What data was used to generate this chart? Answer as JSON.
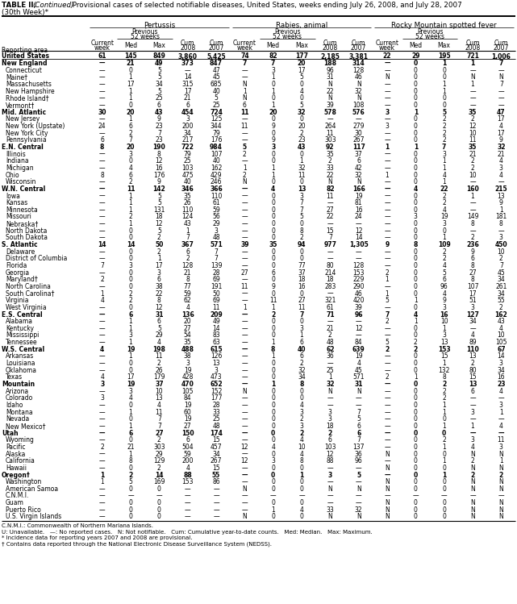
{
  "title_line1": "TABLE II. (Continued) Provisional cases of selected notifiable diseases, United States, weeks ending July 26, 2008, and July 28, 2007",
  "title_line2": "(30th Week)*",
  "col_groups": [
    "Pertussis",
    "Rabies, animal",
    "Rocky Mountain spotted fever"
  ],
  "rows": [
    [
      "United States",
      "61",
      "145",
      "849",
      "3,860",
      "5,425",
      "74",
      "82",
      "177",
      "2,185",
      "3,381",
      "22",
      "29",
      "195",
      "721",
      "1,006"
    ],
    [
      "New England",
      "—",
      "21",
      "49",
      "373",
      "847",
      "7",
      "7",
      "20",
      "188",
      "314",
      "—",
      "0",
      "1",
      "1",
      "7"
    ],
    [
      "Connecticut",
      "—",
      "0",
      "5",
      "—",
      "47",
      "—",
      "3",
      "17",
      "96",
      "128",
      "—",
      "0",
      "0",
      "—",
      "—"
    ],
    [
      "Maine†",
      "—",
      "1",
      "5",
      "14",
      "45",
      "—",
      "1",
      "5",
      "31",
      "46",
      "N",
      "0",
      "0",
      "N",
      "N"
    ],
    [
      "Massachusetts",
      "—",
      "17",
      "34",
      "315",
      "685",
      "N",
      "0",
      "0",
      "N",
      "N",
      "—",
      "0",
      "1",
      "1",
      "7"
    ],
    [
      "New Hampshire",
      "—",
      "1",
      "5",
      "17",
      "40",
      "1",
      "1",
      "4",
      "22",
      "32",
      "—",
      "0",
      "1",
      "—",
      "—"
    ],
    [
      "Rhode Island†",
      "—",
      "1",
      "25",
      "21",
      "5",
      "N",
      "0",
      "0",
      "N",
      "N",
      "—",
      "0",
      "0",
      "—",
      "—"
    ],
    [
      "Vermont†",
      "—",
      "0",
      "6",
      "6",
      "25",
      "6",
      "1",
      "5",
      "39",
      "108",
      "—",
      "0",
      "0",
      "—",
      "—"
    ],
    [
      "Mid. Atlantic",
      "30",
      "20",
      "43",
      "454",
      "724",
      "11",
      "20",
      "32",
      "578",
      "576",
      "3",
      "1",
      "5",
      "35",
      "47"
    ],
    [
      "New Jersey",
      "—",
      "1",
      "9",
      "3",
      "125",
      "—",
      "0",
      "0",
      "—",
      "—",
      "—",
      "0",
      "2",
      "2",
      "17"
    ],
    [
      "New York (Upstate)",
      "24",
      "6",
      "23",
      "200",
      "344",
      "11",
      "9",
      "20",
      "264",
      "279",
      "3",
      "0",
      "2",
      "12",
      "4"
    ],
    [
      "New York City",
      "—",
      "2",
      "7",
      "34",
      "79",
      "—",
      "0",
      "2",
      "11",
      "30",
      "—",
      "0",
      "2",
      "10",
      "17"
    ],
    [
      "Pennsylvania",
      "6",
      "7",
      "23",
      "217",
      "176",
      "—",
      "9",
      "23",
      "303",
      "267",
      "—",
      "0",
      "2",
      "11",
      "9"
    ],
    [
      "E.N. Central",
      "8",
      "20",
      "190",
      "722",
      "984",
      "5",
      "3",
      "43",
      "92",
      "117",
      "1",
      "1",
      "7",
      "35",
      "32"
    ],
    [
      "Illinois",
      "—",
      "3",
      "8",
      "79",
      "107",
      "2",
      "0",
      "0",
      "35",
      "37",
      "—",
      "0",
      "3",
      "21",
      "21"
    ],
    [
      "Indiana",
      "—",
      "0",
      "12",
      "25",
      "40",
      "—",
      "0",
      "1",
      "2",
      "6",
      "—",
      "0",
      "1",
      "2",
      "4"
    ],
    [
      "Michigan",
      "—",
      "4",
      "16",
      "103",
      "162",
      "1",
      "1",
      "32",
      "33",
      "42",
      "—",
      "0",
      "1",
      "2",
      "3"
    ],
    [
      "Ohio",
      "8",
      "6",
      "176",
      "475",
      "429",
      "2",
      "1",
      "11",
      "22",
      "32",
      "1",
      "0",
      "4",
      "10",
      "4"
    ],
    [
      "Wisconsin",
      "—",
      "2",
      "9",
      "40",
      "246",
      "N",
      "0",
      "0",
      "N",
      "N",
      "—",
      "0",
      "1",
      "—",
      "—"
    ],
    [
      "W.N. Central",
      "—",
      "11",
      "142",
      "346",
      "366",
      "—",
      "4",
      "13",
      "82",
      "166",
      "—",
      "4",
      "22",
      "160",
      "215"
    ],
    [
      "Iowa",
      "—",
      "1",
      "5",
      "35",
      "110",
      "—",
      "0",
      "3",
      "11",
      "19",
      "—",
      "0",
      "2",
      "1",
      "13"
    ],
    [
      "Kansas",
      "—",
      "1",
      "5",
      "26",
      "61",
      "—",
      "0",
      "7",
      "—",
      "81",
      "—",
      "0",
      "2",
      "—",
      "9"
    ],
    [
      "Minnesota",
      "—",
      "1",
      "131",
      "110",
      "59",
      "—",
      "0",
      "7",
      "27",
      "16",
      "—",
      "0",
      "4",
      "—",
      "1"
    ],
    [
      "Missouri",
      "—",
      "2",
      "18",
      "124",
      "56",
      "—",
      "0",
      "5",
      "22",
      "24",
      "—",
      "3",
      "19",
      "149",
      "181"
    ],
    [
      "Nebraska†",
      "—",
      "1",
      "12",
      "43",
      "29",
      "—",
      "0",
      "0",
      "—",
      "—",
      "—",
      "0",
      "3",
      "8",
      "8"
    ],
    [
      "North Dakota",
      "—",
      "0",
      "5",
      "1",
      "3",
      "—",
      "0",
      "8",
      "15",
      "12",
      "—",
      "0",
      "0",
      "—",
      "—"
    ],
    [
      "South Dakota",
      "—",
      "0",
      "2",
      "7",
      "48",
      "—",
      "0",
      "2",
      "7",
      "14",
      "—",
      "0",
      "1",
      "2",
      "3"
    ],
    [
      "S. Atlantic",
      "14",
      "14",
      "50",
      "367",
      "571",
      "39",
      "35",
      "94",
      "977",
      "1,305",
      "9",
      "8",
      "109",
      "236",
      "450"
    ],
    [
      "Delaware",
      "—",
      "0",
      "2",
      "6",
      "7",
      "—",
      "0",
      "0",
      "—",
      "—",
      "—",
      "0",
      "2",
      "9",
      "10"
    ],
    [
      "District of Columbia",
      "—",
      "0",
      "1",
      "2",
      "7",
      "—",
      "0",
      "0",
      "—",
      "—",
      "—",
      "0",
      "2",
      "6",
      "2"
    ],
    [
      "Florida",
      "7",
      "3",
      "17",
      "128",
      "139",
      "—",
      "0",
      "77",
      "80",
      "128",
      "—",
      "0",
      "4",
      "8",
      "7"
    ],
    [
      "Georgia",
      "—",
      "0",
      "3",
      "21",
      "28",
      "27",
      "6",
      "37",
      "214",
      "153",
      "2",
      "0",
      "5",
      "27",
      "45"
    ],
    [
      "Maryland†",
      "2",
      "0",
      "6",
      "8",
      "69",
      "—",
      "0",
      "18",
      "18",
      "229",
      "1",
      "0",
      "6",
      "8",
      "34"
    ],
    [
      "North Carolina",
      "—",
      "0",
      "38",
      "77",
      "191",
      "11",
      "9",
      "16",
      "283",
      "290",
      "—",
      "0",
      "96",
      "107",
      "261"
    ],
    [
      "South Carolina†",
      "1",
      "2",
      "22",
      "59",
      "50",
      "—",
      "0",
      "0",
      "—",
      "46",
      "1",
      "0",
      "4",
      "17",
      "34"
    ],
    [
      "Virginia",
      "4",
      "2",
      "8",
      "62",
      "69",
      "—",
      "11",
      "27",
      "321",
      "420",
      "5",
      "1",
      "9",
      "51",
      "55"
    ],
    [
      "West Virginia",
      "—",
      "0",
      "12",
      "4",
      "11",
      "1",
      "1",
      "11",
      "61",
      "39",
      "—",
      "0",
      "3",
      "3",
      "2"
    ],
    [
      "E.S. Central",
      "—",
      "6",
      "31",
      "136",
      "209",
      "—",
      "2",
      "7",
      "71",
      "96",
      "7",
      "4",
      "16",
      "127",
      "162"
    ],
    [
      "Alabama",
      "—",
      "1",
      "6",
      "20",
      "49",
      "—",
      "0",
      "0",
      "—",
      "—",
      "2",
      "1",
      "10",
      "34",
      "43"
    ],
    [
      "Kentucky",
      "—",
      "1",
      "5",
      "27",
      "14",
      "—",
      "0",
      "3",
      "21",
      "12",
      "—",
      "0",
      "1",
      "—",
      "4"
    ],
    [
      "Mississippi",
      "—",
      "3",
      "29",
      "54",
      "83",
      "—",
      "0",
      "1",
      "2",
      "—",
      "—",
      "0",
      "3",
      "4",
      "10"
    ],
    [
      "Tennessee",
      "—",
      "1",
      "4",
      "35",
      "63",
      "—",
      "1",
      "6",
      "48",
      "84",
      "5",
      "2",
      "13",
      "89",
      "105"
    ],
    [
      "W.S. Central",
      "4",
      "19",
      "198",
      "488",
      "615",
      "—",
      "8",
      "40",
      "62",
      "639",
      "2",
      "2",
      "153",
      "110",
      "67"
    ],
    [
      "Arkansas",
      "—",
      "1",
      "11",
      "38",
      "126",
      "—",
      "1",
      "6",
      "36",
      "19",
      "—",
      "0",
      "15",
      "13",
      "14"
    ],
    [
      "Louisiana",
      "—",
      "0",
      "2",
      "3",
      "13",
      "—",
      "0",
      "2",
      "—",
      "4",
      "—",
      "0",
      "1",
      "2",
      "3"
    ],
    [
      "Oklahoma",
      "—",
      "0",
      "26",
      "19",
      "3",
      "—",
      "0",
      "32",
      "25",
      "45",
      "—",
      "0",
      "132",
      "80",
      "34"
    ],
    [
      "Texas",
      "4",
      "17",
      "179",
      "428",
      "473",
      "—",
      "0",
      "34",
      "1",
      "571",
      "2",
      "1",
      "8",
      "15",
      "16"
    ],
    [
      "Mountain",
      "3",
      "19",
      "37",
      "470",
      "652",
      "—",
      "1",
      "8",
      "32",
      "31",
      "—",
      "0",
      "2",
      "13",
      "23"
    ],
    [
      "Arizona",
      "—",
      "3",
      "10",
      "105",
      "152",
      "N",
      "0",
      "0",
      "N",
      "N",
      "—",
      "0",
      "2",
      "6",
      "4"
    ],
    [
      "Colorado",
      "3",
      "4",
      "13",
      "84",
      "177",
      "—",
      "0",
      "0",
      "—",
      "—",
      "—",
      "0",
      "2",
      "—",
      "—"
    ],
    [
      "Idaho",
      "—",
      "0",
      "4",
      "19",
      "28",
      "—",
      "0",
      "4",
      "—",
      "—",
      "—",
      "0",
      "1",
      "—",
      "3"
    ],
    [
      "Montana",
      "—",
      "1",
      "11",
      "60",
      "33",
      "—",
      "0",
      "3",
      "3",
      "7",
      "—",
      "0",
      "1",
      "3",
      "1"
    ],
    [
      "Nevada",
      "—",
      "0",
      "7",
      "19",
      "25",
      "—",
      "0",
      "2",
      "3",
      "5",
      "—",
      "0",
      "0",
      "—",
      "—"
    ],
    [
      "New Mexico†",
      "—",
      "1",
      "7",
      "27",
      "48",
      "—",
      "0",
      "3",
      "18",
      "6",
      "—",
      "0",
      "1",
      "1",
      "4"
    ],
    [
      "Utah",
      "—",
      "6",
      "27",
      "150",
      "174",
      "—",
      "0",
      "2",
      "2",
      "6",
      "—",
      "0",
      "0",
      "—",
      "—"
    ],
    [
      "Wyoming",
      "—",
      "0",
      "2",
      "6",
      "15",
      "—",
      "0",
      "4",
      "6",
      "7",
      "—",
      "0",
      "2",
      "3",
      "11"
    ],
    [
      "Pacific",
      "2",
      "21",
      "303",
      "504",
      "457",
      "12",
      "4",
      "10",
      "103",
      "137",
      "—",
      "0",
      "1",
      "4",
      "3"
    ],
    [
      "Alaska",
      "—",
      "1",
      "29",
      "59",
      "34",
      "—",
      "0",
      "4",
      "12",
      "36",
      "N",
      "0",
      "0",
      "N",
      "N"
    ],
    [
      "California",
      "—",
      "8",
      "129",
      "200",
      "267",
      "12",
      "3",
      "8",
      "88",
      "96",
      "—",
      "0",
      "1",
      "2",
      "1"
    ],
    [
      "Hawaii",
      "—",
      "0",
      "2",
      "4",
      "15",
      "—",
      "0",
      "0",
      "—",
      "—",
      "N",
      "0",
      "0",
      "N",
      "N"
    ],
    [
      "Oregon†",
      "1",
      "2",
      "14",
      "88",
      "55",
      "—",
      "0",
      "1",
      "3",
      "5",
      "—",
      "0",
      "1",
      "2",
      "2"
    ],
    [
      "Washington",
      "1",
      "5",
      "169",
      "153",
      "86",
      "—",
      "0",
      "0",
      "—",
      "—",
      "N",
      "0",
      "0",
      "N",
      "N"
    ],
    [
      "American Samoa",
      "—",
      "0",
      "0",
      "—",
      "—",
      "N",
      "0",
      "0",
      "N",
      "N",
      "N",
      "0",
      "0",
      "N",
      "N"
    ],
    [
      "C.N.M.I.",
      "—",
      "—",
      "—",
      "—",
      "—",
      "—",
      "—",
      "—",
      "—",
      "—",
      "—",
      "—",
      "—",
      "—",
      "—"
    ],
    [
      "Guam",
      "—",
      "0",
      "0",
      "—",
      "—",
      "—",
      "0",
      "0",
      "—",
      "—",
      "N",
      "0",
      "0",
      "N",
      "N"
    ],
    [
      "Puerto Rico",
      "—",
      "0",
      "0",
      "—",
      "—",
      "—",
      "1",
      "4",
      "33",
      "32",
      "N",
      "0",
      "0",
      "N",
      "N"
    ],
    [
      "U.S. Virgin Islands",
      "—",
      "0",
      "0",
      "—",
      "—",
      "N",
      "0",
      "0",
      "N",
      "N",
      "N",
      "0",
      "0",
      "N",
      "N"
    ]
  ],
  "bold_rows": [
    0,
    1,
    8,
    13,
    19,
    27,
    37,
    42,
    47,
    54,
    60
  ],
  "footer_lines": [
    "C.N.M.I.: Commonwealth of Northern Mariana Islands.",
    "U: Unavailable.   —: No reported cases.   N: Not notifiable.   Cum: Cumulative year-to-date counts.   Med: Median.   Max: Maximum.",
    "* Incidence data for reporting years 2007 and 2008 are provisional.",
    "† Contains data reported through the National Electronic Disease Surveillance System (NEDSS)."
  ]
}
